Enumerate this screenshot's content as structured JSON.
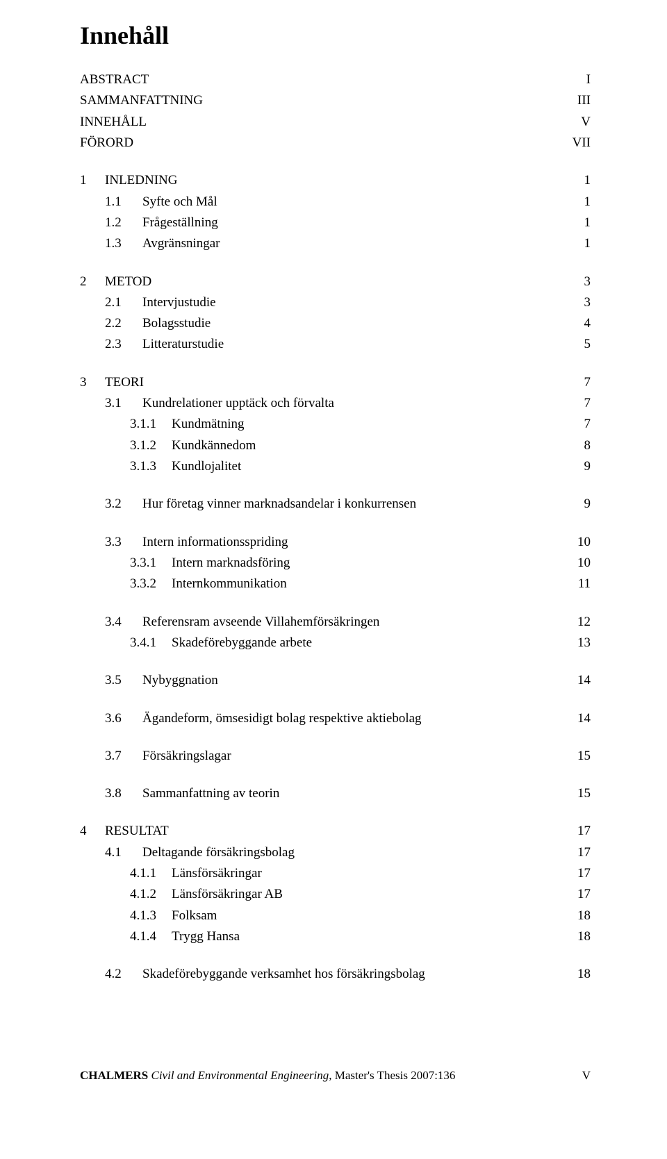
{
  "title": "Innehåll",
  "front_matter": [
    {
      "label": "ABSTRACT",
      "page": "I"
    },
    {
      "label": "SAMMANFATTNING",
      "page": "III"
    },
    {
      "label": "INNEHÅLL",
      "page": "V"
    },
    {
      "label": "FÖRORD",
      "page": "VII"
    }
  ],
  "sections": [
    {
      "num": "1",
      "label": "INLEDNING",
      "page": "1",
      "subs": [
        {
          "num": "1.1",
          "label": "Syfte och Mål",
          "page": "1"
        },
        {
          "num": "1.2",
          "label": "Frågeställning",
          "page": "1"
        },
        {
          "num": "1.3",
          "label": "Avgränsningar",
          "page": "1"
        }
      ]
    },
    {
      "num": "2",
      "label": "METOD",
      "page": "3",
      "subs": [
        {
          "num": "2.1",
          "label": "Intervjustudie",
          "page": "3"
        },
        {
          "num": "2.2",
          "label": "Bolagsstudie",
          "page": "4"
        },
        {
          "num": "2.3",
          "label": "Litteraturstudie",
          "page": "5"
        }
      ]
    },
    {
      "num": "3",
      "label": "TEORI",
      "page": "7",
      "subs": [
        {
          "num": "3.1",
          "label": "Kundrelationer upptäck och förvalta",
          "page": "7",
          "subs": [
            {
              "num": "3.1.1",
              "label": "Kundmätning",
              "page": "7"
            },
            {
              "num": "3.1.2",
              "label": "Kundkännedom",
              "page": "8"
            },
            {
              "num": "3.1.3",
              "label": "Kundlojalitet",
              "page": "9"
            }
          ]
        },
        {
          "num": "3.2",
          "label": "Hur företag vinner marknadsandelar i konkurrensen",
          "page": "9"
        },
        {
          "num": "3.3",
          "label": "Intern informationsspriding",
          "page": "10",
          "subs": [
            {
              "num": "3.3.1",
              "label": "Intern marknadsföring",
              "page": "10"
            },
            {
              "num": "3.3.2",
              "label": "Internkommunikation",
              "page": "11"
            }
          ]
        },
        {
          "num": "3.4",
          "label": "Referensram avseende Villahemförsäkringen",
          "page": "12",
          "subs": [
            {
              "num": "3.4.1",
              "label": "Skadeförebyggande arbete",
              "page": "13"
            }
          ]
        },
        {
          "num": "3.5",
          "label": "Nybyggnation",
          "page": "14"
        },
        {
          "num": "3.6",
          "label": "Ägandeform, ömsesidigt bolag respektive aktiebolag",
          "page": "14"
        },
        {
          "num": "3.7",
          "label": "Försäkringslagar",
          "page": "15"
        },
        {
          "num": "3.8",
          "label": "Sammanfattning av teorin",
          "page": "15"
        }
      ]
    },
    {
      "num": "4",
      "label": "RESULTAT",
      "page": "17",
      "subs": [
        {
          "num": "4.1",
          "label": "Deltagande försäkringsbolag",
          "page": "17",
          "subs": [
            {
              "num": "4.1.1",
              "label": "Länsförsäkringar",
              "page": "17"
            },
            {
              "num": "4.1.2",
              "label": "Länsförsäkringar AB",
              "page": "17"
            },
            {
              "num": "4.1.3",
              "label": "Folksam",
              "page": "18"
            },
            {
              "num": "4.1.4",
              "label": "Trygg Hansa",
              "page": "18"
            }
          ]
        },
        {
          "num": "4.2",
          "label": "Skadeförebyggande verksamhet hos försäkringsbolag",
          "page": "18"
        }
      ]
    }
  ],
  "footer": {
    "brand": "CHALMERS",
    "series": "Civil and Environmental Engineering",
    "thesis": "Master's Thesis 2007:136",
    "page": "V"
  }
}
